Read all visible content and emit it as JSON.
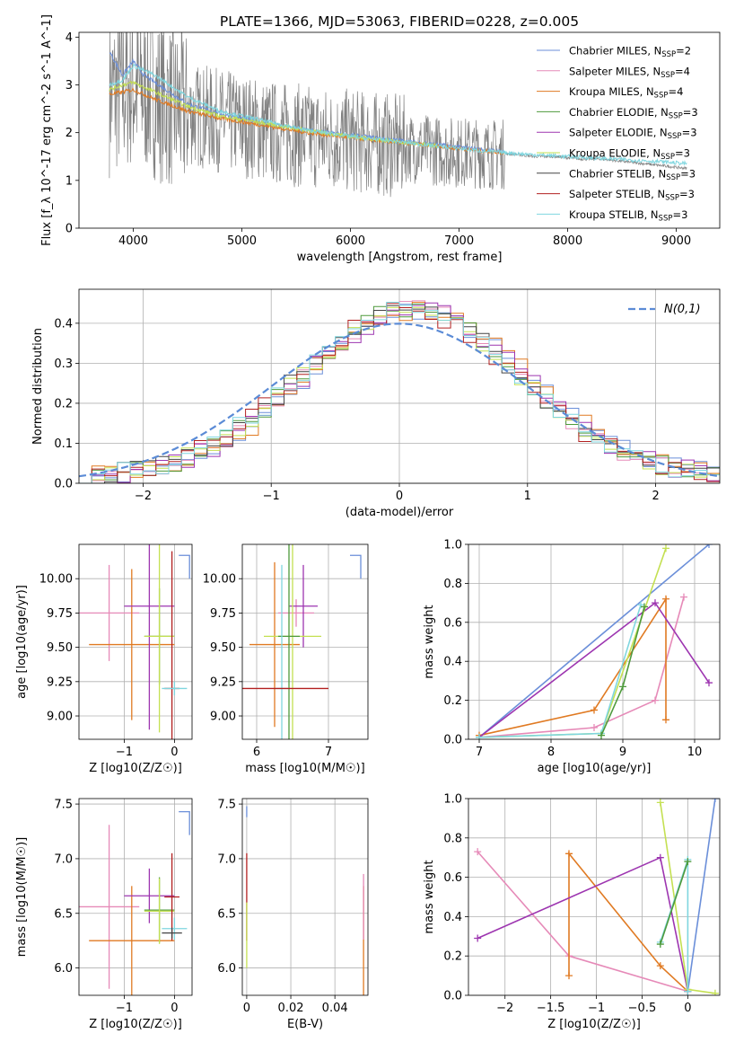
{
  "title": "PLATE=1366, MJD=53063, FIBERID=0228, z=0.005",
  "colors": {
    "Chabrier MILES": "#6b8fd9",
    "Salpeter MILES": "#e68ab8",
    "Kroupa MILES": "#e07a22",
    "Chabrier ELODIE": "#4e9a3c",
    "Salpeter ELODIE": "#9d35b0",
    "Kroupa ELODIE": "#c4e052",
    "Chabrier STELIB": "#444444",
    "Salpeter STELIB": "#b22020",
    "Kroupa STELIB": "#7fd6df",
    "data": "#808080",
    "gaussian": "#5b8bd6"
  },
  "chart_data": [
    {
      "id": "spectrum",
      "type": "line",
      "xlabel": "wavelength [Angstrom, rest frame]",
      "ylabel": "Flux [f_λ 10^-17 erg cm^-2 s^-1 A^-1]",
      "xlim": [
        3500,
        9400
      ],
      "ylim": [
        0,
        4.1
      ],
      "xticks": [
        4000,
        5000,
        6000,
        7000,
        8000,
        9000
      ],
      "yticks": [
        0,
        1,
        2,
        3,
        4
      ],
      "legend_position": "upper right",
      "legend": [
        {
          "name": "Chabrier MILES",
          "nssp": "2"
        },
        {
          "name": "Salpeter MILES",
          "nssp": "4"
        },
        {
          "name": "Kroupa MILES",
          "nssp": "4"
        },
        {
          "name": "Chabrier ELODIE",
          "nssp": "3"
        },
        {
          "name": "Salpeter ELODIE",
          "nssp": "3"
        },
        {
          "name": "Kroupa ELODIE",
          "nssp": "3"
        },
        {
          "name": "Chabrier STELIB",
          "nssp": "3"
        },
        {
          "name": "Salpeter STELIB",
          "nssp": "3"
        },
        {
          "name": "Kroupa STELIB",
          "nssp": "3"
        }
      ],
      "data_continuum": {
        "x": [
          3780,
          3900,
          4000,
          4100,
          4200,
          4300,
          4400,
          4500,
          4700,
          4900,
          5100,
          5300,
          5500,
          5700,
          5900,
          6100,
          6300,
          6500,
          6700,
          6900,
          7100,
          7300,
          7500,
          7700,
          7900,
          8100,
          8300,
          8500,
          8700,
          8900,
          9100
        ],
        "y": [
          2.8,
          2.9,
          2.95,
          2.9,
          2.75,
          2.6,
          2.5,
          2.4,
          2.3,
          2.2,
          2.1,
          2.0,
          1.95,
          1.9,
          1.85,
          1.8,
          1.75,
          1.7,
          1.65,
          1.6,
          1.58,
          1.55,
          1.55,
          1.5,
          1.5,
          1.45,
          1.45,
          1.4,
          1.35,
          1.3,
          1.25
        ],
        "noise_until": 7420
      },
      "models": [
        {
          "name": "Chabrier MILES",
          "x": [
            3780,
            3900,
            4000,
            4100,
            4300,
            4500,
            4800,
            5200,
            5600,
            6000,
            6400,
            6800,
            7200,
            7420
          ],
          "y": [
            3.7,
            3.2,
            3.5,
            3.2,
            2.9,
            2.6,
            2.4,
            2.2,
            2.05,
            1.95,
            1.85,
            1.75,
            1.65,
            1.6
          ]
        },
        {
          "name": "Kroupa MILES",
          "x": [
            3780,
            3900,
            4000,
            4200,
            4500,
            4800,
            5200,
            5600,
            6000,
            6400,
            6800,
            7200,
            7420
          ],
          "y": [
            2.8,
            2.85,
            2.9,
            2.7,
            2.45,
            2.3,
            2.15,
            2.0,
            1.9,
            1.8,
            1.72,
            1.62,
            1.58
          ]
        },
        {
          "name": "Kroupa ELODIE",
          "x": [
            3780,
            3900,
            4000,
            4200,
            4500,
            4800,
            5200,
            5600,
            6000,
            6400,
            6800
          ],
          "y": [
            2.9,
            3.0,
            3.05,
            2.85,
            2.55,
            2.35,
            2.2,
            2.05,
            1.92,
            1.82,
            1.72
          ]
        },
        {
          "name": "Kroupa STELIB",
          "x": [
            3780,
            3900,
            4000,
            4200,
            4500,
            4800,
            5200,
            5600,
            6000,
            6400,
            6800,
            7200,
            7600,
            8000,
            8400,
            8800,
            9100
          ],
          "y": [
            3.0,
            3.1,
            3.4,
            3.2,
            2.75,
            2.45,
            2.25,
            2.05,
            1.92,
            1.82,
            1.72,
            1.62,
            1.55,
            1.5,
            1.45,
            1.4,
            1.35
          ]
        }
      ]
    },
    {
      "id": "residuals",
      "type": "step",
      "xlabel": "(data-model)/error",
      "ylabel": "Normed distribution",
      "xlim": [
        -2.5,
        2.5
      ],
      "ylim": [
        0,
        0.485
      ],
      "xticks": [
        -2,
        -1,
        0,
        1,
        2
      ],
      "yticks": [
        0.0,
        0.1,
        0.2,
        0.3,
        0.4
      ],
      "grid": true,
      "legend_position": "upper right",
      "gaussian_label": "N(0,1)",
      "bin_width": 0.1,
      "base_hist": [
        0.02,
        0.025,
        0.03,
        0.035,
        0.04,
        0.048,
        0.056,
        0.065,
        0.075,
        0.085,
        0.095,
        0.105,
        0.115,
        0.13,
        0.145,
        0.165,
        0.18,
        0.2,
        0.22,
        0.245,
        0.26,
        0.28,
        0.3,
        0.32,
        0.34,
        0.35,
        0.36,
        0.37,
        0.375,
        0.38,
        0.385,
        0.39,
        0.395,
        0.4,
        0.41,
        0.415,
        0.42,
        0.42,
        0.42,
        0.415,
        0.41,
        0.405,
        0.4,
        0.395,
        0.39,
        0.38,
        0.37,
        0.36,
        0.35,
        0.335,
        0.32,
        0.3,
        0.28,
        0.26,
        0.24,
        0.22,
        0.2,
        0.18,
        0.16,
        0.145,
        0.13,
        0.115,
        0.1,
        0.09,
        0.08,
        0.07,
        0.062,
        0.055,
        0.05,
        0.045,
        0.04,
        0.038,
        0.035,
        0.032,
        0.03,
        0.028,
        0.026,
        0.024,
        0.022,
        0.02,
        0.018,
        0.016,
        0.015,
        0.014,
        0.013,
        0.012,
        0.011,
        0.01,
        0.009,
        0.008,
        0.007,
        0.006,
        0.006,
        0.005,
        0.005,
        0.004,
        0.004,
        0.003,
        0.003,
        0.003,
        0.002
      ],
      "base_start": -2.5,
      "series_offsets": [
        {
          "name": "Chabrier MILES",
          "shift": 0.06
        },
        {
          "name": "Salpeter MILES",
          "shift": 0.03
        },
        {
          "name": "Kroupa MILES",
          "shift": 0.09
        },
        {
          "name": "Chabrier ELODIE",
          "shift": 0.02
        },
        {
          "name": "Salpeter ELODIE",
          "shift": 0.04
        },
        {
          "name": "Kroupa ELODIE",
          "shift": 0.01
        },
        {
          "name": "Chabrier STELIB",
          "shift": 0.0
        },
        {
          "name": "Salpeter STELIB",
          "shift": -0.02
        },
        {
          "name": "Kroupa STELIB",
          "shift": -0.01
        }
      ]
    },
    {
      "id": "age_vs_Z",
      "type": "errorbar",
      "xlabel": "Z [log10(Z/Z☉)]",
      "ylabel": "age  [log10(age/yr)]",
      "xlim": [
        -1.9,
        0.35
      ],
      "ylim": [
        8.83,
        10.25
      ],
      "xticks": [
        -1,
        0
      ],
      "yticks": [
        9.0,
        9.25,
        9.5,
        9.75,
        10.0
      ],
      "points": [
        {
          "name": "Salpeter MILES",
          "x": -1.3,
          "y": 9.75,
          "xerr": 0.6,
          "yerr": 0.35
        },
        {
          "name": "Kroupa MILES",
          "x": -0.85,
          "y": 9.52,
          "xerr": 0.85,
          "yerr": 0.55
        },
        {
          "name": "Salpeter ELODIE",
          "x": -0.5,
          "y": 9.8,
          "xerr": 0.5,
          "yerr": 0.9
        },
        {
          "name": "Chabrier ELODIE",
          "x": -0.3,
          "y": 9.58,
          "xerr": 0.3,
          "yerr": 0.35
        },
        {
          "name": "Kroupa ELODIE",
          "x": -0.3,
          "y": 9.58,
          "xerr": 0.3,
          "yerr": 0.7
        },
        {
          "name": "Salpeter STELIB",
          "x": -0.05,
          "y": 9.2,
          "xerr": 0.15,
          "yerr": 1.0
        },
        {
          "name": "Kroupa STELIB",
          "x": 0.0,
          "y": 9.2,
          "xerr": 0.25,
          "yerr": 0.05
        },
        {
          "name": "Chabrier MILES",
          "x": 0.3,
          "y": 10.17,
          "xerr": 0.0,
          "yerr": 0.0
        }
      ]
    },
    {
      "id": "age_vs_mass",
      "type": "errorbar",
      "xlabel": "mass [log10(M/M☉)]",
      "ylabel": "",
      "xlim": [
        5.8,
        7.55
      ],
      "ylim": [
        8.83,
        10.25
      ],
      "xticks": [
        6,
        7
      ],
      "yticks": [
        9.0,
        9.25,
        9.5,
        9.75,
        10.0
      ],
      "points": [
        {
          "name": "Salpeter MILES",
          "x": 6.55,
          "y": 9.75,
          "xerr": 0.25,
          "yerr": 0.1
        },
        {
          "name": "Kroupa MILES",
          "x": 6.25,
          "y": 9.52,
          "xerr": 0.35,
          "yerr": 0.6
        },
        {
          "name": "Salpeter ELODIE",
          "x": 6.65,
          "y": 9.8,
          "xerr": 0.2,
          "yerr": 0.3
        },
        {
          "name": "Kroupa ELODIE",
          "x": 6.5,
          "y": 9.58,
          "xerr": 0.4,
          "yerr": 0.8
        },
        {
          "name": "Chabrier ELODIE",
          "x": 6.45,
          "y": 9.58,
          "xerr": 0.15,
          "yerr": 0.9
        },
        {
          "name": "Kroupa STELIB",
          "x": 6.35,
          "y": 9.2,
          "xerr": 0.1,
          "yerr": 0.9
        },
        {
          "name": "Salpeter STELIB",
          "x": 6.4,
          "y": 9.2,
          "xerr": 0.6,
          "yerr": 0.0
        },
        {
          "name": "Chabrier MILES",
          "x": 7.45,
          "y": 10.17,
          "xerr": 0.0,
          "yerr": 0.0
        }
      ]
    },
    {
      "id": "weight_vs_age",
      "type": "line",
      "xlabel": "age  [log10(age/yr)]",
      "ylabel": "mass weight",
      "xlim": [
        6.85,
        10.35
      ],
      "ylim": [
        0,
        1.0
      ],
      "xticks": [
        7,
        8,
        9,
        10
      ],
      "yticks": [
        0.0,
        0.2,
        0.4,
        0.6,
        0.8,
        1.0
      ],
      "grid": true,
      "series": [
        {
          "name": "Chabrier MILES",
          "x": [
            7.0,
            10.2
          ],
          "y": [
            0.01,
            1.0
          ]
        },
        {
          "name": "Salpeter MILES",
          "x": [
            7.0,
            8.6,
            9.45,
            9.85
          ],
          "y": [
            0.01,
            0.06,
            0.2,
            0.73
          ]
        },
        {
          "name": "Kroupa MILES",
          "x": [
            7.0,
            8.6,
            9.6,
            9.6
          ],
          "y": [
            0.02,
            0.15,
            0.72,
            0.1
          ]
        },
        {
          "name": "Salpeter ELODIE",
          "x": [
            7.0,
            9.45,
            10.2
          ],
          "y": [
            0.01,
            0.7,
            0.29
          ]
        },
        {
          "name": "Kroupa ELODIE",
          "x": [
            7.0,
            8.7,
            9.6
          ],
          "y": [
            0.01,
            0.03,
            0.98
          ]
        },
        {
          "name": "Kroupa STELIB",
          "x": [
            7.0,
            8.7,
            9.25
          ],
          "y": [
            0.01,
            0.03,
            0.69
          ]
        },
        {
          "name": "Chabrier ELODIE",
          "x": [
            8.7,
            9.0,
            9.3
          ],
          "y": [
            0.02,
            0.27,
            0.68
          ]
        }
      ]
    },
    {
      "id": "mass_vs_Z",
      "type": "errorbar",
      "xlabel": "Z [log10(Z/Z☉)]",
      "ylabel": "mass [log10(M/M☉)]",
      "xlim": [
        -1.9,
        0.35
      ],
      "ylim": [
        5.75,
        7.55
      ],
      "xticks": [
        -1,
        0
      ],
      "yticks": [
        6.0,
        6.5,
        7.0,
        7.5
      ],
      "points": [
        {
          "name": "Salpeter MILES",
          "x": -1.3,
          "y": 6.56,
          "xerr": 0.6,
          "yerr": 0.75
        },
        {
          "name": "Kroupa MILES",
          "x": -0.85,
          "y": 6.25,
          "xerr": 0.85,
          "yerr": 0.5
        },
        {
          "name": "Salpeter ELODIE",
          "x": -0.5,
          "y": 6.66,
          "xerr": 0.5,
          "yerr": 0.25
        },
        {
          "name": "Chabrier ELODIE",
          "x": -0.3,
          "y": 6.53,
          "xerr": 0.3,
          "yerr": 0.3
        },
        {
          "name": "Kroupa ELODIE",
          "x": -0.3,
          "y": 6.52,
          "xerr": 0.3,
          "yerr": 0.3
        },
        {
          "name": "Salpeter STELIB",
          "x": -0.05,
          "y": 6.65,
          "xerr": 0.15,
          "yerr": 0.4
        },
        {
          "name": "Kroupa STELIB",
          "x": 0.0,
          "y": 6.36,
          "xerr": 0.25,
          "yerr": 0.1
        },
        {
          "name": "Chabrier STELIB",
          "x": -0.05,
          "y": 6.32,
          "xerr": 0.2,
          "yerr": 0.05
        },
        {
          "name": "Chabrier MILES",
          "x": 0.3,
          "y": 7.43,
          "xerr": 0.0,
          "yerr": 0.0
        }
      ]
    },
    {
      "id": "mass_vs_ebv",
      "type": "errorbar",
      "xlabel": "E(B-V)",
      "ylabel": "",
      "xlim": [
        -0.002,
        0.055
      ],
      "ylim": [
        5.75,
        7.55
      ],
      "xticks": [
        0.0,
        0.02,
        0.04
      ],
      "yticks": [
        6.0,
        6.5,
        7.0,
        7.5
      ],
      "points": [
        {
          "name": "Chabrier MILES",
          "x": 0.0,
          "y": 7.43,
          "xerr": 0.0,
          "yerr": 0.05
        },
        {
          "name": "Salpeter STELIB",
          "x": 0.0,
          "y": 6.65,
          "xerr": 0.0,
          "yerr": 0.4
        },
        {
          "name": "Kroupa ELODIE",
          "x": 0.0,
          "y": 6.3,
          "xerr": 0.0,
          "yerr": 0.3
        },
        {
          "name": "Kroupa MILES",
          "x": 0.053,
          "y": 6.25,
          "xerr": 0.0,
          "yerr": 0.5
        },
        {
          "name": "Salpeter MILES",
          "x": 0.053,
          "y": 6.56,
          "xerr": 0.0,
          "yerr": 0.3
        }
      ]
    },
    {
      "id": "weight_vs_Z",
      "type": "line",
      "xlabel": "Z [log10(Z/Z☉)]",
      "ylabel": "mass weight",
      "xlim": [
        -2.4,
        0.35
      ],
      "ylim": [
        0,
        1.0
      ],
      "xticks": [
        -2.0,
        -1.5,
        -1.0,
        -0.5,
        0.0
      ],
      "yticks": [
        0.0,
        0.2,
        0.4,
        0.6,
        0.8,
        1.0
      ],
      "grid": true,
      "series": [
        {
          "name": "Chabrier MILES",
          "x": [
            0.0,
            0.3
          ],
          "y": [
            0.02,
            1.0
          ]
        },
        {
          "name": "Salpeter MILES",
          "x": [
            -2.3,
            -1.3,
            0.0
          ],
          "y": [
            0.73,
            0.2,
            0.02
          ]
        },
        {
          "name": "Kroupa MILES",
          "x": [
            -1.3,
            -1.3,
            -0.3,
            0.0
          ],
          "y": [
            0.1,
            0.72,
            0.15,
            0.02
          ]
        },
        {
          "name": "Salpeter ELODIE",
          "x": [
            -2.3,
            -0.3,
            0.0
          ],
          "y": [
            0.29,
            0.7,
            0.02
          ]
        },
        {
          "name": "Kroupa ELODIE",
          "x": [
            -0.3,
            0.0,
            0.3
          ],
          "y": [
            0.98,
            0.03,
            0.01
          ]
        },
        {
          "name": "Kroupa STELIB",
          "x": [
            -0.3,
            0.0,
            0.0
          ],
          "y": [
            0.27,
            0.69,
            0.02
          ]
        },
        {
          "name": "Chabrier ELODIE",
          "x": [
            -0.3,
            0.0
          ],
          "y": [
            0.26,
            0.68
          ]
        }
      ]
    }
  ]
}
